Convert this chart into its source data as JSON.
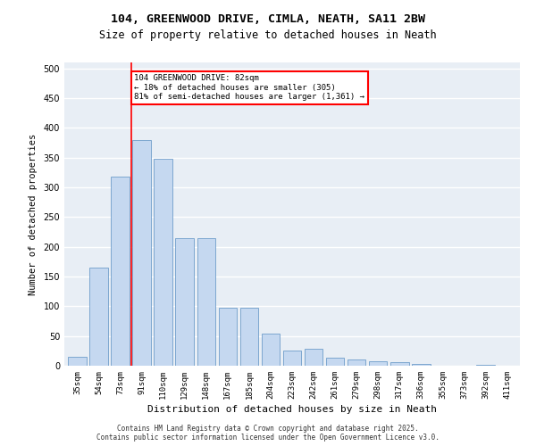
{
  "title_line1": "104, GREENWOOD DRIVE, CIMLA, NEATH, SA11 2BW",
  "title_line2": "Size of property relative to detached houses in Neath",
  "xlabel": "Distribution of detached houses by size in Neath",
  "ylabel": "Number of detached properties",
  "categories": [
    "35sqm",
    "54sqm",
    "73sqm",
    "91sqm",
    "110sqm",
    "129sqm",
    "148sqm",
    "167sqm",
    "185sqm",
    "204sqm",
    "223sqm",
    "242sqm",
    "261sqm",
    "279sqm",
    "298sqm",
    "317sqm",
    "336sqm",
    "355sqm",
    "373sqm",
    "392sqm",
    "411sqm"
  ],
  "values": [
    15,
    165,
    318,
    380,
    348,
    215,
    215,
    97,
    97,
    54,
    25,
    28,
    13,
    10,
    8,
    6,
    3,
    0,
    0,
    1,
    0
  ],
  "bar_color": "#c5d8f0",
  "bar_edge_color": "#5a8fc2",
  "red_line_index": 2.5,
  "annotation_text": "104 GREENWOOD DRIVE: 82sqm\n← 18% of detached houses are smaller (305)\n81% of semi-detached houses are larger (1,361) →",
  "annotation_box_color": "white",
  "annotation_box_edge_color": "red",
  "ylim": [
    0,
    510
  ],
  "yticks": [
    0,
    50,
    100,
    150,
    200,
    250,
    300,
    350,
    400,
    450,
    500
  ],
  "bg_color": "#e8eef5",
  "grid_color": "white",
  "footer_line1": "Contains HM Land Registry data © Crown copyright and database right 2025.",
  "footer_line2": "Contains public sector information licensed under the Open Government Licence v3.0."
}
